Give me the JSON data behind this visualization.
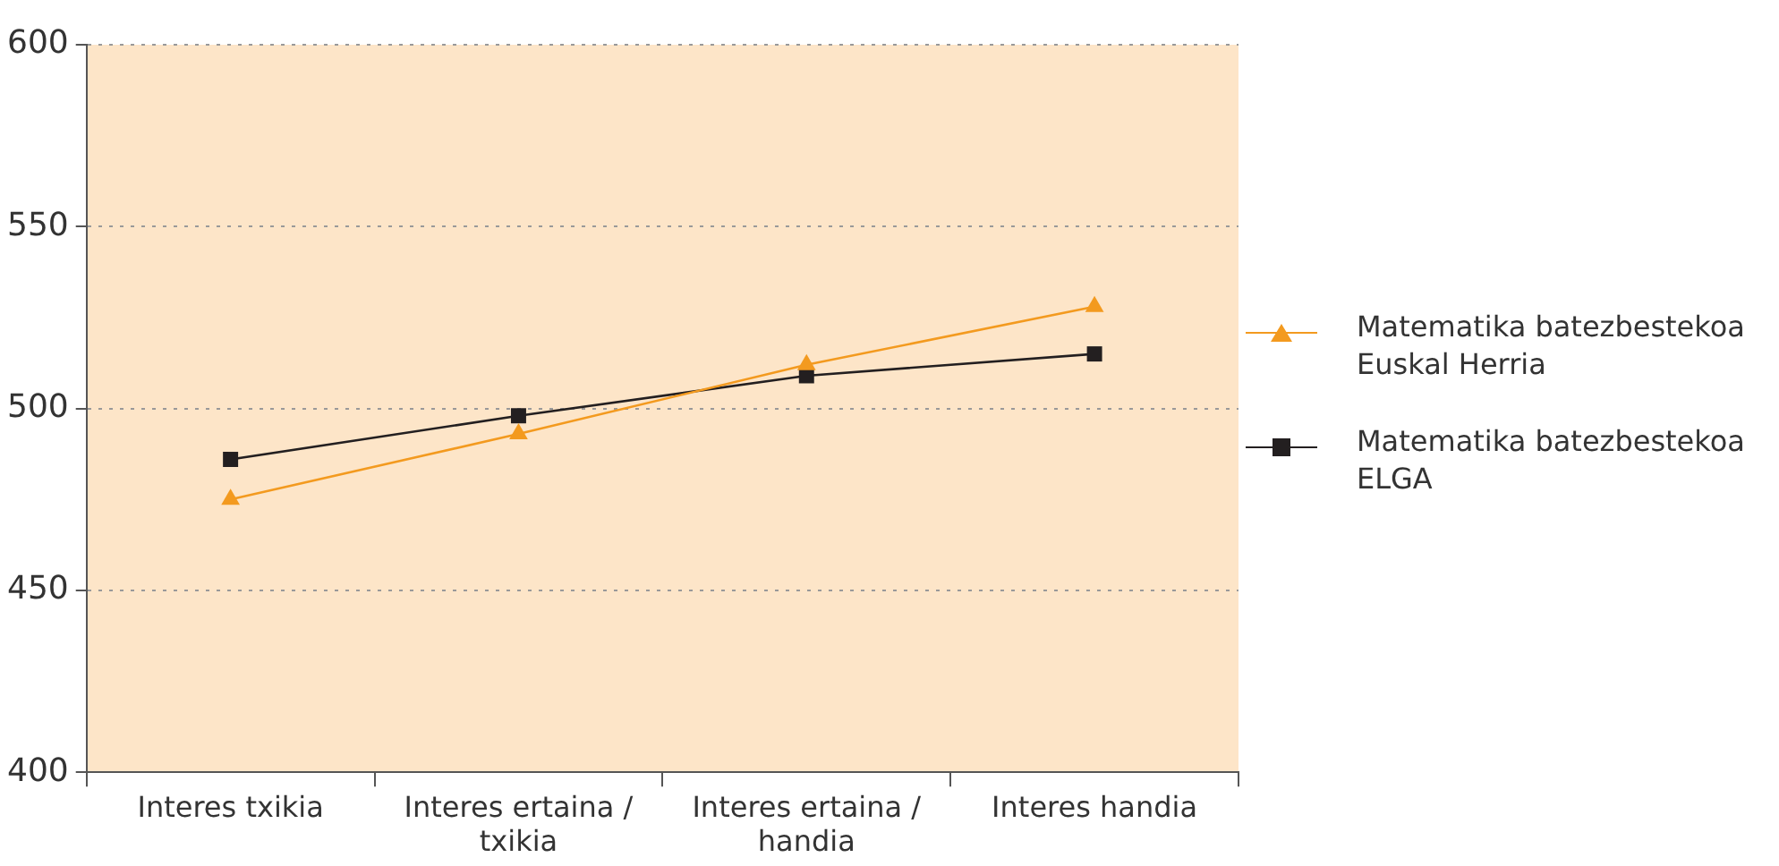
{
  "chart_data": {
    "type": "line",
    "categories": [
      "Interes txikia",
      "Interes ertaina / txikia",
      "Interes ertaina / handia",
      "Interes handia"
    ],
    "series": [
      {
        "name": "Matematika batezbestekoa Euskal Herria",
        "color": "#f39a1f",
        "values": [
          475,
          493,
          512,
          528
        ],
        "marker": "triangle"
      },
      {
        "name": "Matematika batezbestekoa ELGA",
        "color": "#231f20",
        "values": [
          486,
          498,
          509,
          515
        ],
        "marker": "square"
      }
    ],
    "ylim": [
      400,
      600
    ],
    "yticks": [
      400,
      450,
      500,
      550,
      600
    ],
    "grid": "y",
    "legend": "right",
    "line_style": "solid"
  }
}
